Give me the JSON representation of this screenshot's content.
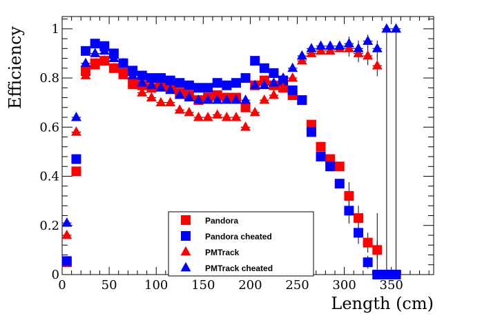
{
  "chart_data": {
    "type": "scatter",
    "title": "",
    "xlabel": "Length (cm)",
    "ylabel": "Efficiency",
    "xlim": [
      0,
      395
    ],
    "ylim": [
      0,
      1.05
    ],
    "x_ticks": [
      0,
      50,
      100,
      150,
      200,
      250,
      300,
      350
    ],
    "y_ticks": [
      0,
      0.2,
      0.4,
      0.6,
      0.8,
      1
    ],
    "x_tick_labels": [
      "0",
      "50",
      "100",
      "150",
      "200",
      "250",
      "300",
      "350"
    ],
    "y_tick_labels": [
      "0",
      "0.2",
      "0.4",
      "0.6",
      "0.8",
      "1"
    ],
    "grid": false,
    "legend_position": "bottom-center",
    "series": [
      {
        "name": "Pandora",
        "marker": "square",
        "color": "#ff0000",
        "points": [
          [
            5,
            0.05
          ],
          [
            15,
            0.42
          ],
          [
            25,
            0.83
          ],
          [
            35,
            0.86
          ],
          [
            45,
            0.87
          ],
          [
            55,
            0.84
          ],
          [
            65,
            0.82
          ],
          [
            75,
            0.78
          ],
          [
            85,
            0.77
          ],
          [
            95,
            0.76
          ],
          [
            105,
            0.77
          ],
          [
            115,
            0.76
          ],
          [
            125,
            0.74
          ],
          [
            135,
            0.73
          ],
          [
            145,
            0.71
          ],
          [
            155,
            0.72
          ],
          [
            165,
            0.73
          ],
          [
            175,
            0.72
          ],
          [
            185,
            0.72
          ],
          [
            195,
            0.68
          ],
          [
            205,
            0.77
          ],
          [
            215,
            0.79
          ],
          [
            225,
            0.77
          ],
          [
            235,
            0.76
          ],
          [
            245,
            0.73
          ],
          [
            255,
            0.71
          ],
          [
            265,
            0.61
          ],
          [
            275,
            0.52
          ],
          [
            285,
            0.47
          ],
          [
            295,
            0.44
          ],
          [
            305,
            0.32
          ],
          [
            315,
            0.23
          ],
          [
            325,
            0.13
          ],
          [
            335,
            0.1
          ],
          [
            345,
            0.0
          ],
          [
            355,
            0.0
          ]
        ]
      },
      {
        "name": "Pandora cheated",
        "marker": "square",
        "color": "#0000ff",
        "points": [
          [
            5,
            0.055
          ],
          [
            15,
            0.47
          ],
          [
            25,
            0.91
          ],
          [
            35,
            0.94
          ],
          [
            45,
            0.93
          ],
          [
            55,
            0.9
          ],
          [
            65,
            0.86
          ],
          [
            75,
            0.83
          ],
          [
            85,
            0.81
          ],
          [
            95,
            0.8
          ],
          [
            105,
            0.8
          ],
          [
            115,
            0.79
          ],
          [
            125,
            0.78
          ],
          [
            135,
            0.77
          ],
          [
            145,
            0.76
          ],
          [
            155,
            0.76
          ],
          [
            165,
            0.78
          ],
          [
            175,
            0.77
          ],
          [
            185,
            0.78
          ],
          [
            195,
            0.8
          ],
          [
            205,
            0.87
          ],
          [
            215,
            0.84
          ],
          [
            225,
            0.82
          ],
          [
            235,
            0.79
          ],
          [
            245,
            0.75
          ],
          [
            255,
            0.71
          ],
          [
            265,
            0.58
          ],
          [
            275,
            0.48
          ],
          [
            285,
            0.44
          ],
          [
            295,
            0.37
          ],
          [
            305,
            0.26
          ],
          [
            315,
            0.17
          ],
          [
            325,
            0.05
          ],
          [
            335,
            0.0
          ],
          [
            345,
            0.0
          ],
          [
            355,
            0.0
          ]
        ]
      },
      {
        "name": "PMTrack",
        "marker": "triangle",
        "color": "#ff0000",
        "points": [
          [
            5,
            0.16
          ],
          [
            15,
            0.58
          ],
          [
            25,
            0.81
          ],
          [
            35,
            0.85
          ],
          [
            45,
            0.87
          ],
          [
            55,
            0.84
          ],
          [
            65,
            0.81
          ],
          [
            75,
            0.77
          ],
          [
            85,
            0.74
          ],
          [
            95,
            0.72
          ],
          [
            105,
            0.7
          ],
          [
            115,
            0.7
          ],
          [
            125,
            0.67
          ],
          [
            135,
            0.66
          ],
          [
            145,
            0.64
          ],
          [
            155,
            0.64
          ],
          [
            165,
            0.65
          ],
          [
            175,
            0.64
          ],
          [
            185,
            0.64
          ],
          [
            195,
            0.6
          ],
          [
            205,
            0.66
          ],
          [
            215,
            0.71
          ],
          [
            225,
            0.73
          ],
          [
            235,
            0.76
          ],
          [
            245,
            0.8
          ],
          [
            255,
            0.87
          ],
          [
            265,
            0.9
          ],
          [
            275,
            0.91
          ],
          [
            285,
            0.91
          ],
          [
            295,
            0.92
          ],
          [
            305,
            0.92
          ],
          [
            315,
            0.9
          ],
          [
            325,
            0.89
          ],
          [
            335,
            0.85
          ]
        ]
      },
      {
        "name": "PMTrack cheated",
        "marker": "triangle",
        "color": "#0000ff",
        "points": [
          [
            5,
            0.21
          ],
          [
            15,
            0.64
          ],
          [
            25,
            0.86
          ],
          [
            35,
            0.9
          ],
          [
            45,
            0.91
          ],
          [
            55,
            0.88
          ],
          [
            65,
            0.86
          ],
          [
            75,
            0.81
          ],
          [
            85,
            0.78
          ],
          [
            95,
            0.77
          ],
          [
            105,
            0.76
          ],
          [
            115,
            0.75
          ],
          [
            125,
            0.73
          ],
          [
            135,
            0.72
          ],
          [
            145,
            0.71
          ],
          [
            155,
            0.71
          ],
          [
            165,
            0.71
          ],
          [
            175,
            0.71
          ],
          [
            185,
            0.71
          ],
          [
            195,
            0.71
          ],
          [
            205,
            0.77
          ],
          [
            215,
            0.77
          ],
          [
            225,
            0.78
          ],
          [
            235,
            0.8
          ],
          [
            245,
            0.84
          ],
          [
            255,
            0.89
          ],
          [
            265,
            0.92
          ],
          [
            275,
            0.93
          ],
          [
            285,
            0.93
          ],
          [
            295,
            0.93
          ],
          [
            305,
            0.94
          ],
          [
            315,
            0.92
          ],
          [
            325,
            0.95
          ],
          [
            335,
            0.92
          ],
          [
            345,
            1.0
          ],
          [
            355,
            1.0
          ]
        ]
      }
    ]
  }
}
